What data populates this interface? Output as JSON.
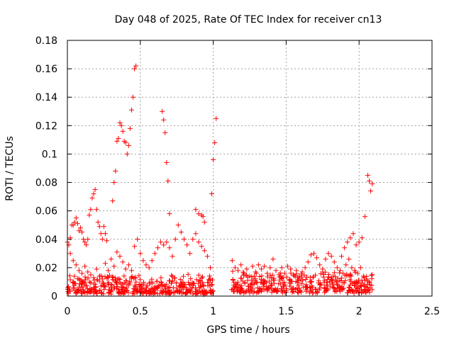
{
  "chart_data": {
    "type": "scatter",
    "title": "Day 048 of 2025, Rate Of TEC Index for receiver cn13",
    "xlabel": "GPS time / hours",
    "ylabel": "ROTI / TECUs",
    "xlim": [
      0,
      2.5
    ],
    "ylim": [
      0,
      0.18
    ],
    "x_ticks": [
      0,
      0.5,
      1,
      1.5,
      2,
      2.5
    ],
    "x_tick_labels": [
      "0",
      "0.5",
      "1",
      "1.5",
      "2",
      "2.5"
    ],
    "y_ticks": [
      0,
      0.02,
      0.04,
      0.06,
      0.08,
      0.1,
      0.12,
      0.14,
      0.16,
      0.18
    ],
    "y_tick_labels": [
      "0",
      "0.02",
      "0.04",
      "0.06",
      "0.08",
      "0.1",
      "0.12",
      "0.14",
      "0.16",
      "0.18"
    ],
    "grid": true,
    "marker": "+",
    "marker_color": "#ff0000",
    "series": [
      {
        "name": "ROTI",
        "points": [
          [
            0.0,
            0.038
          ],
          [
            0.01,
            0.036
          ],
          [
            0.02,
            0.041
          ],
          [
            0.03,
            0.05
          ],
          [
            0.04,
            0.05
          ],
          [
            0.05,
            0.052
          ],
          [
            0.06,
            0.055
          ],
          [
            0.07,
            0.051
          ],
          [
            0.08,
            0.046
          ],
          [
            0.09,
            0.048
          ],
          [
            0.1,
            0.045
          ],
          [
            0.11,
            0.04
          ],
          [
            0.12,
            0.038
          ],
          [
            0.13,
            0.036
          ],
          [
            0.14,
            0.04
          ],
          [
            0.15,
            0.057
          ],
          [
            0.16,
            0.061
          ],
          [
            0.17,
            0.069
          ],
          [
            0.18,
            0.072
          ],
          [
            0.19,
            0.075
          ],
          [
            0.2,
            0.061
          ],
          [
            0.21,
            0.052
          ],
          [
            0.22,
            0.049
          ],
          [
            0.23,
            0.044
          ],
          [
            0.24,
            0.04
          ],
          [
            0.25,
            0.049
          ],
          [
            0.26,
            0.044
          ],
          [
            0.27,
            0.039
          ],
          [
            0.31,
            0.067
          ],
          [
            0.32,
            0.08
          ],
          [
            0.33,
            0.088
          ],
          [
            0.34,
            0.109
          ],
          [
            0.35,
            0.111
          ],
          [
            0.36,
            0.122
          ],
          [
            0.37,
            0.12
          ],
          [
            0.38,
            0.116
          ],
          [
            0.39,
            0.109
          ],
          [
            0.4,
            0.108
          ],
          [
            0.41,
            0.1
          ],
          [
            0.42,
            0.106
          ],
          [
            0.43,
            0.118
          ],
          [
            0.44,
            0.131
          ],
          [
            0.45,
            0.14
          ],
          [
            0.46,
            0.16
          ],
          [
            0.47,
            0.162
          ],
          [
            0.65,
            0.13
          ],
          [
            0.66,
            0.124
          ],
          [
            0.67,
            0.115
          ],
          [
            0.68,
            0.094
          ],
          [
            0.69,
            0.081
          ],
          [
            0.7,
            0.058
          ],
          [
            0.88,
            0.061
          ],
          [
            0.9,
            0.058
          ],
          [
            0.92,
            0.057
          ],
          [
            0.93,
            0.056
          ],
          [
            0.94,
            0.052
          ],
          [
            0.99,
            0.072
          ],
          [
            1.0,
            0.096
          ],
          [
            1.01,
            0.108
          ],
          [
            1.02,
            0.125
          ],
          [
            1.88,
            0.028
          ],
          [
            1.9,
            0.034
          ],
          [
            1.92,
            0.038
          ],
          [
            1.94,
            0.041
          ],
          [
            1.96,
            0.044
          ],
          [
            1.98,
            0.036
          ],
          [
            2.0,
            0.038
          ],
          [
            2.02,
            0.041
          ],
          [
            2.04,
            0.056
          ],
          [
            2.06,
            0.085
          ],
          [
            2.07,
            0.081
          ],
          [
            2.08,
            0.074
          ],
          [
            2.09,
            0.079
          ],
          [
            0.02,
            0.03
          ],
          [
            0.04,
            0.025
          ],
          [
            0.06,
            0.022
          ],
          [
            0.08,
            0.018
          ],
          [
            0.1,
            0.016
          ],
          [
            0.12,
            0.021
          ],
          [
            0.14,
            0.017
          ],
          [
            0.16,
            0.015
          ],
          [
            0.18,
            0.013
          ],
          [
            0.2,
            0.019
          ],
          [
            0.22,
            0.014
          ],
          [
            0.24,
            0.012
          ],
          [
            0.26,
            0.023
          ],
          [
            0.28,
            0.018
          ],
          [
            0.3,
            0.026
          ],
          [
            0.32,
            0.021
          ],
          [
            0.34,
            0.031
          ],
          [
            0.36,
            0.028
          ],
          [
            0.38,
            0.024
          ],
          [
            0.4,
            0.019
          ],
          [
            0.42,
            0.022
          ],
          [
            0.44,
            0.018
          ],
          [
            0.46,
            0.035
          ],
          [
            0.48,
            0.04
          ],
          [
            0.5,
            0.03
          ],
          [
            0.52,
            0.025
          ],
          [
            0.54,
            0.022
          ],
          [
            0.56,
            0.02
          ],
          [
            0.58,
            0.025
          ],
          [
            0.6,
            0.03
          ],
          [
            0.62,
            0.034
          ],
          [
            0.64,
            0.038
          ],
          [
            0.66,
            0.036
          ],
          [
            0.68,
            0.038
          ],
          [
            0.7,
            0.034
          ],
          [
            0.72,
            0.028
          ],
          [
            0.74,
            0.04
          ],
          [
            0.76,
            0.05
          ],
          [
            0.78,
            0.045
          ],
          [
            0.8,
            0.04
          ],
          [
            0.82,
            0.036
          ],
          [
            0.84,
            0.03
          ],
          [
            0.86,
            0.04
          ],
          [
            0.88,
            0.044
          ],
          [
            0.9,
            0.038
          ],
          [
            0.92,
            0.035
          ],
          [
            0.94,
            0.032
          ],
          [
            0.96,
            0.028
          ],
          [
            0.98,
            0.02
          ],
          [
            1.13,
            0.025
          ],
          [
            1.15,
            0.02
          ],
          [
            1.17,
            0.018
          ],
          [
            1.19,
            0.022
          ],
          [
            1.21,
            0.016
          ],
          [
            1.23,
            0.019
          ],
          [
            1.25,
            0.014
          ],
          [
            1.27,
            0.021
          ],
          [
            1.29,
            0.017
          ],
          [
            1.31,
            0.022
          ],
          [
            1.33,
            0.019
          ],
          [
            1.35,
            0.021
          ],
          [
            1.37,
            0.016
          ],
          [
            1.39,
            0.02
          ],
          [
            1.41,
            0.026
          ],
          [
            1.43,
            0.018
          ],
          [
            1.45,
            0.015
          ],
          [
            1.47,
            0.02
          ],
          [
            1.49,
            0.016
          ],
          [
            1.51,
            0.021
          ],
          [
            1.53,
            0.019
          ],
          [
            1.55,
            0.015
          ],
          [
            1.57,
            0.018
          ],
          [
            1.59,
            0.014
          ],
          [
            1.61,
            0.017
          ],
          [
            1.63,
            0.02
          ],
          [
            1.65,
            0.024
          ],
          [
            1.67,
            0.029
          ],
          [
            1.69,
            0.03
          ],
          [
            1.71,
            0.027
          ],
          [
            1.73,
            0.022
          ],
          [
            1.75,
            0.019
          ],
          [
            1.77,
            0.026
          ],
          [
            1.79,
            0.03
          ],
          [
            1.81,
            0.028
          ],
          [
            1.83,
            0.024
          ],
          [
            1.85,
            0.02
          ],
          [
            1.87,
            0.018
          ],
          [
            1.89,
            0.016
          ],
          [
            1.91,
            0.022
          ],
          [
            1.93,
            0.026
          ],
          [
            1.95,
            0.02
          ],
          [
            1.97,
            0.018
          ],
          [
            1.99,
            0.016
          ],
          [
            2.01,
            0.02
          ],
          [
            2.03,
            0.014
          ],
          [
            2.05,
            0.012
          ],
          [
            2.07,
            0.01
          ],
          [
            2.09,
            0.015
          ]
        ]
      }
    ],
    "dense_band": [
      {
        "x_start": 0.0,
        "x_end": 1.0,
        "y_min": 0.001,
        "y_max": 0.016,
        "count": 420
      },
      {
        "x_start": 1.12,
        "x_end": 2.1,
        "y_min": 0.002,
        "y_max": 0.018,
        "count": 380
      }
    ]
  }
}
